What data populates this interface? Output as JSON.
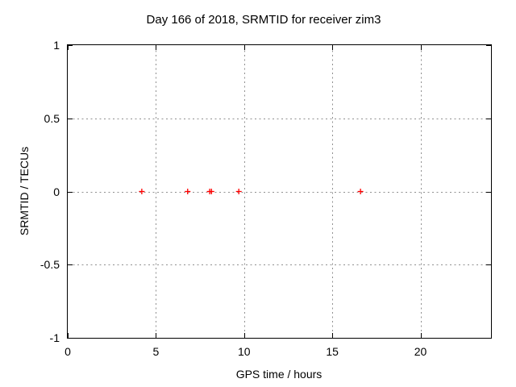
{
  "chart_data": {
    "type": "scatter",
    "title": "Day 166 of 2018, SRMTID for receiver zim3",
    "xlabel": "GPS time / hours",
    "ylabel": "SRMTID / TECUs",
    "xlim": [
      0,
      24
    ],
    "ylim": [
      -1,
      1
    ],
    "xticks": [
      0,
      5,
      10,
      15,
      20
    ],
    "yticks": [
      1,
      0.5,
      0,
      -0.5,
      -1
    ],
    "grid": true,
    "legend": "none",
    "series": [
      {
        "name": "SRMTID",
        "marker": "plus",
        "color": "#ff0000",
        "points": [
          {
            "x": 4.2,
            "y": 0
          },
          {
            "x": 6.8,
            "y": 0
          },
          {
            "x": 8.05,
            "y": 0
          },
          {
            "x": 8.15,
            "y": 0
          },
          {
            "x": 9.7,
            "y": 0
          },
          {
            "x": 16.6,
            "y": 0
          }
        ]
      }
    ],
    "colors": {
      "background": "#ffffff",
      "border": "#000000",
      "grid": "#909090",
      "text": "#000000",
      "marker": "#ff0000"
    }
  }
}
